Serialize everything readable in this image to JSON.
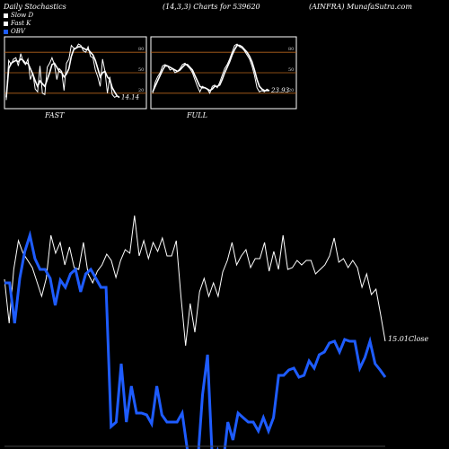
{
  "header": {
    "left": "Daily Stochastics",
    "center": "(14,3,3) Charts for 539620",
    "right": "(AINFRA) MunafaSutra.com"
  },
  "legend": [
    {
      "label": "Slow  D",
      "color": "#ffffff"
    },
    {
      "label": "Fast K",
      "color": "#ffffff"
    },
    {
      "label": "OBV",
      "color": "#1e5cff"
    }
  ],
  "colors": {
    "obv": "#1e5cff",
    "price": "#ffffff",
    "band": "#b5651d",
    "background": "#000000"
  },
  "chart_data": [
    {
      "type": "line",
      "panel": "fast",
      "label": "FAST",
      "ylim": [
        0,
        100
      ],
      "band_levels": [
        20,
        50,
        80
      ],
      "tick_labels": [
        "80",
        "50",
        "20"
      ],
      "last_value_label": "14.14",
      "series": [
        {
          "name": "Fast K",
          "values": [
            10,
            68,
            62,
            70,
            72,
            60,
            78,
            66,
            62,
            70,
            40,
            50,
            26,
            22,
            60,
            20,
            18,
            58,
            64,
            72,
            62,
            40,
            56,
            52,
            24,
            64,
            70,
            90,
            86,
            86,
            92,
            90,
            82,
            80,
            88,
            74,
            72,
            54,
            44,
            30,
            70,
            52,
            20,
            44,
            18,
            14,
            16,
            14
          ]
        },
        {
          "name": "Slow  D",
          "values": [
            14,
            56,
            64,
            66,
            68,
            66,
            70,
            68,
            64,
            64,
            56,
            48,
            38,
            30,
            38,
            34,
            30,
            40,
            50,
            62,
            64,
            58,
            52,
            50,
            44,
            48,
            56,
            74,
            84,
            86,
            88,
            88,
            86,
            84,
            84,
            80,
            76,
            68,
            56,
            44,
            50,
            52,
            44,
            40,
            28,
            22,
            16,
            14
          ]
        }
      ]
    },
    {
      "type": "line",
      "panel": "full",
      "label": "FULL",
      "ylim": [
        0,
        100
      ],
      "band_levels": [
        20,
        50,
        80
      ],
      "tick_labels": [
        "80",
        "50",
        "20"
      ],
      "last_value_label": "23.93",
      "series": [
        {
          "name": "Fast K",
          "values": [
            20,
            36,
            44,
            50,
            60,
            62,
            60,
            54,
            56,
            50,
            52,
            56,
            62,
            64,
            60,
            56,
            50,
            40,
            30,
            22,
            30,
            28,
            26,
            20,
            30,
            32,
            28,
            36,
            46,
            56,
            62,
            70,
            80,
            90,
            92,
            88,
            86,
            82,
            76,
            70,
            60,
            46,
            28,
            22,
            24,
            22,
            26,
            24
          ]
        },
        {
          "name": "Slow  D",
          "values": [
            22,
            30,
            38,
            46,
            54,
            60,
            60,
            58,
            56,
            54,
            52,
            54,
            58,
            62,
            62,
            58,
            54,
            46,
            38,
            30,
            28,
            28,
            26,
            24,
            26,
            30,
            30,
            32,
            40,
            50,
            58,
            66,
            76,
            84,
            90,
            90,
            88,
            84,
            80,
            74,
            66,
            54,
            40,
            30,
            26,
            24,
            24,
            24
          ]
        }
      ]
    },
    {
      "type": "line",
      "panel": "main",
      "series": [
        {
          "name": "Close",
          "values": [
            311,
            360,
            300,
            268,
            282,
            290,
            298,
            314,
            330,
            310,
            262,
            282,
            270,
            295,
            275,
            298,
            300,
            270,
            305,
            315,
            302,
            295,
            283,
            290,
            309,
            290,
            278,
            282,
            240,
            285,
            268,
            288,
            270,
            280,
            265,
            285,
            285,
            268,
            330,
            385,
            338,
            370,
            325,
            310,
            330,
            315,
            330,
            303,
            290,
            270,
            295,
            285,
            278,
            298,
            288,
            288,
            270,
            302,
            280,
            300,
            262,
            300,
            298,
            290,
            295,
            290,
            290,
            305,
            300,
            295,
            285,
            265,
            292,
            288,
            298,
            290,
            298,
            320,
            305,
            328,
            322,
            350,
            380
          ]
        },
        {
          "name": "OBV",
          "values": [
            315,
            315,
            360,
            310,
            280,
            262,
            288,
            300,
            300,
            310,
            340,
            312,
            320,
            305,
            300,
            325,
            305,
            300,
            310,
            320,
            320,
            475,
            470,
            405,
            470,
            430,
            460,
            460,
            462,
            472,
            430,
            462,
            470,
            470,
            470,
            460,
            500,
            510,
            520,
            440,
            395,
            520,
            502,
            520,
            470,
            490,
            460,
            465,
            470,
            470,
            480,
            465,
            480,
            465,
            418,
            418,
            412,
            410,
            420,
            418,
            402,
            410,
            395,
            392,
            382,
            380,
            392,
            378,
            380,
            380,
            410,
            398,
            380,
            405,
            412,
            420
          ]
        }
      ],
      "last_value_label": "15.01",
      "close_label": "Close"
    }
  ]
}
